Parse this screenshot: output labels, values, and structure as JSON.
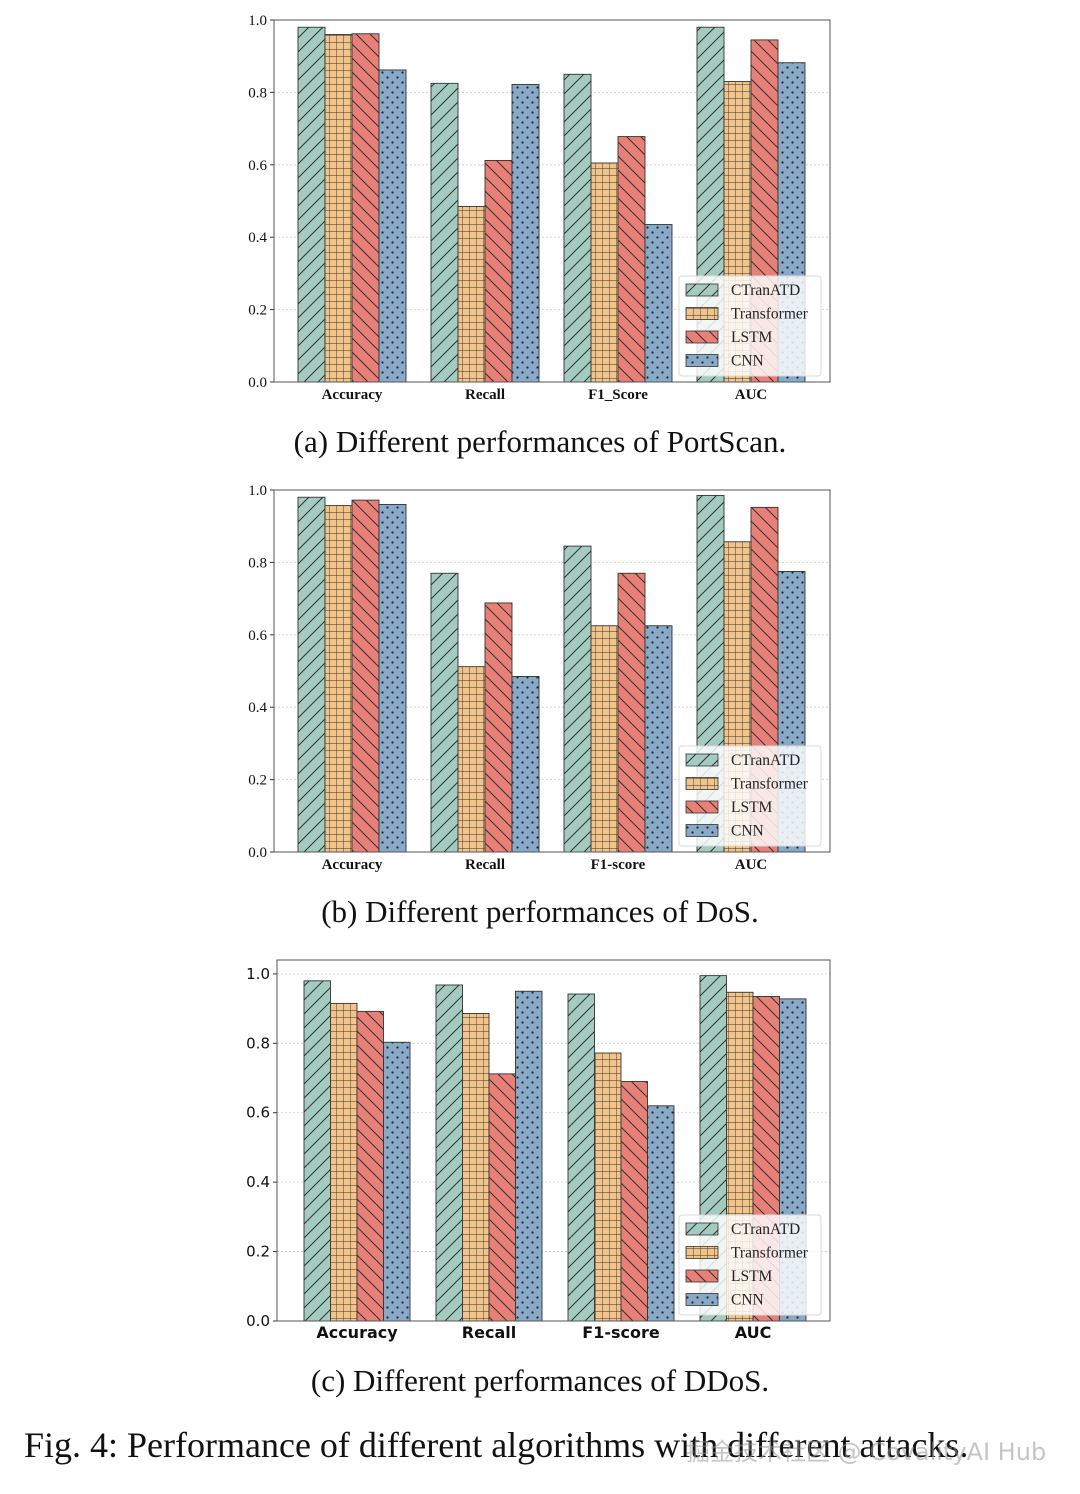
{
  "colors": {
    "CTranATD": "#a4cbc0",
    "Transformer": "#f3c489",
    "LSTM": "#e88077",
    "CNN": "#88a9c8"
  },
  "patterns": [
    "slash",
    "grid",
    "backslash",
    "dots"
  ],
  "chart_data": [
    {
      "type": "bar",
      "title": "(a) Different performances of PortScan.",
      "categories": [
        "Accuracy",
        "Recall",
        "F1_Score",
        "AUC"
      ],
      "ylim": [
        0,
        1.0
      ],
      "yticks": [
        "0.0",
        "0.2",
        "0.4",
        "0.6",
        "0.8",
        "1.0"
      ],
      "grid": true,
      "legend_position": "lower-right",
      "series": [
        {
          "name": "CTranATD",
          "values": [
            0.98,
            0.825,
            0.85,
            0.98
          ]
        },
        {
          "name": "Transformer",
          "values": [
            0.96,
            0.485,
            0.605,
            0.83
          ]
        },
        {
          "name": "LSTM",
          "values": [
            0.962,
            0.612,
            0.678,
            0.945
          ]
        },
        {
          "name": "CNN",
          "values": [
            0.862,
            0.822,
            0.435,
            0.882
          ]
        }
      ]
    },
    {
      "type": "bar",
      "title": "(b) Different performances of DoS.",
      "categories": [
        "Accuracy",
        "Recall",
        "F1-score",
        "AUC"
      ],
      "ylim": [
        0,
        1.0
      ],
      "yticks": [
        "0.0",
        "0.2",
        "0.4",
        "0.6",
        "0.8",
        "1.0"
      ],
      "grid": true,
      "legend_position": "lower-right",
      "series": [
        {
          "name": "CTranATD",
          "values": [
            0.98,
            0.77,
            0.845,
            0.985
          ]
        },
        {
          "name": "Transformer",
          "values": [
            0.957,
            0.512,
            0.625,
            0.857
          ]
        },
        {
          "name": "LSTM",
          "values": [
            0.972,
            0.688,
            0.77,
            0.952
          ]
        },
        {
          "name": "CNN",
          "values": [
            0.96,
            0.485,
            0.625,
            0.775
          ]
        }
      ]
    },
    {
      "type": "bar",
      "title": "(c) Different performances of DDoS.",
      "categories": [
        "Accuracy",
        "Recall",
        "F1-score",
        "AUC"
      ],
      "ylim": [
        0,
        1.04
      ],
      "yticks": [
        "0.0",
        "0.2",
        "0.4",
        "0.6",
        "0.8",
        "1.0"
      ],
      "grid": true,
      "legend_position": "lower-right",
      "series": [
        {
          "name": "CTranATD",
          "values": [
            0.98,
            0.968,
            0.942,
            0.995
          ]
        },
        {
          "name": "Transformer",
          "values": [
            0.915,
            0.886,
            0.772,
            0.947
          ]
        },
        {
          "name": "LSTM",
          "values": [
            0.892,
            0.712,
            0.69,
            0.935
          ]
        },
        {
          "name": "CNN",
          "values": [
            0.803,
            0.95,
            0.62,
            0.928
          ]
        }
      ]
    }
  ],
  "figure_caption": "Fig. 4: Performance of different algorithms with different attacks.",
  "watermark": "掘金技术社区 @ CovalityAI Hub"
}
